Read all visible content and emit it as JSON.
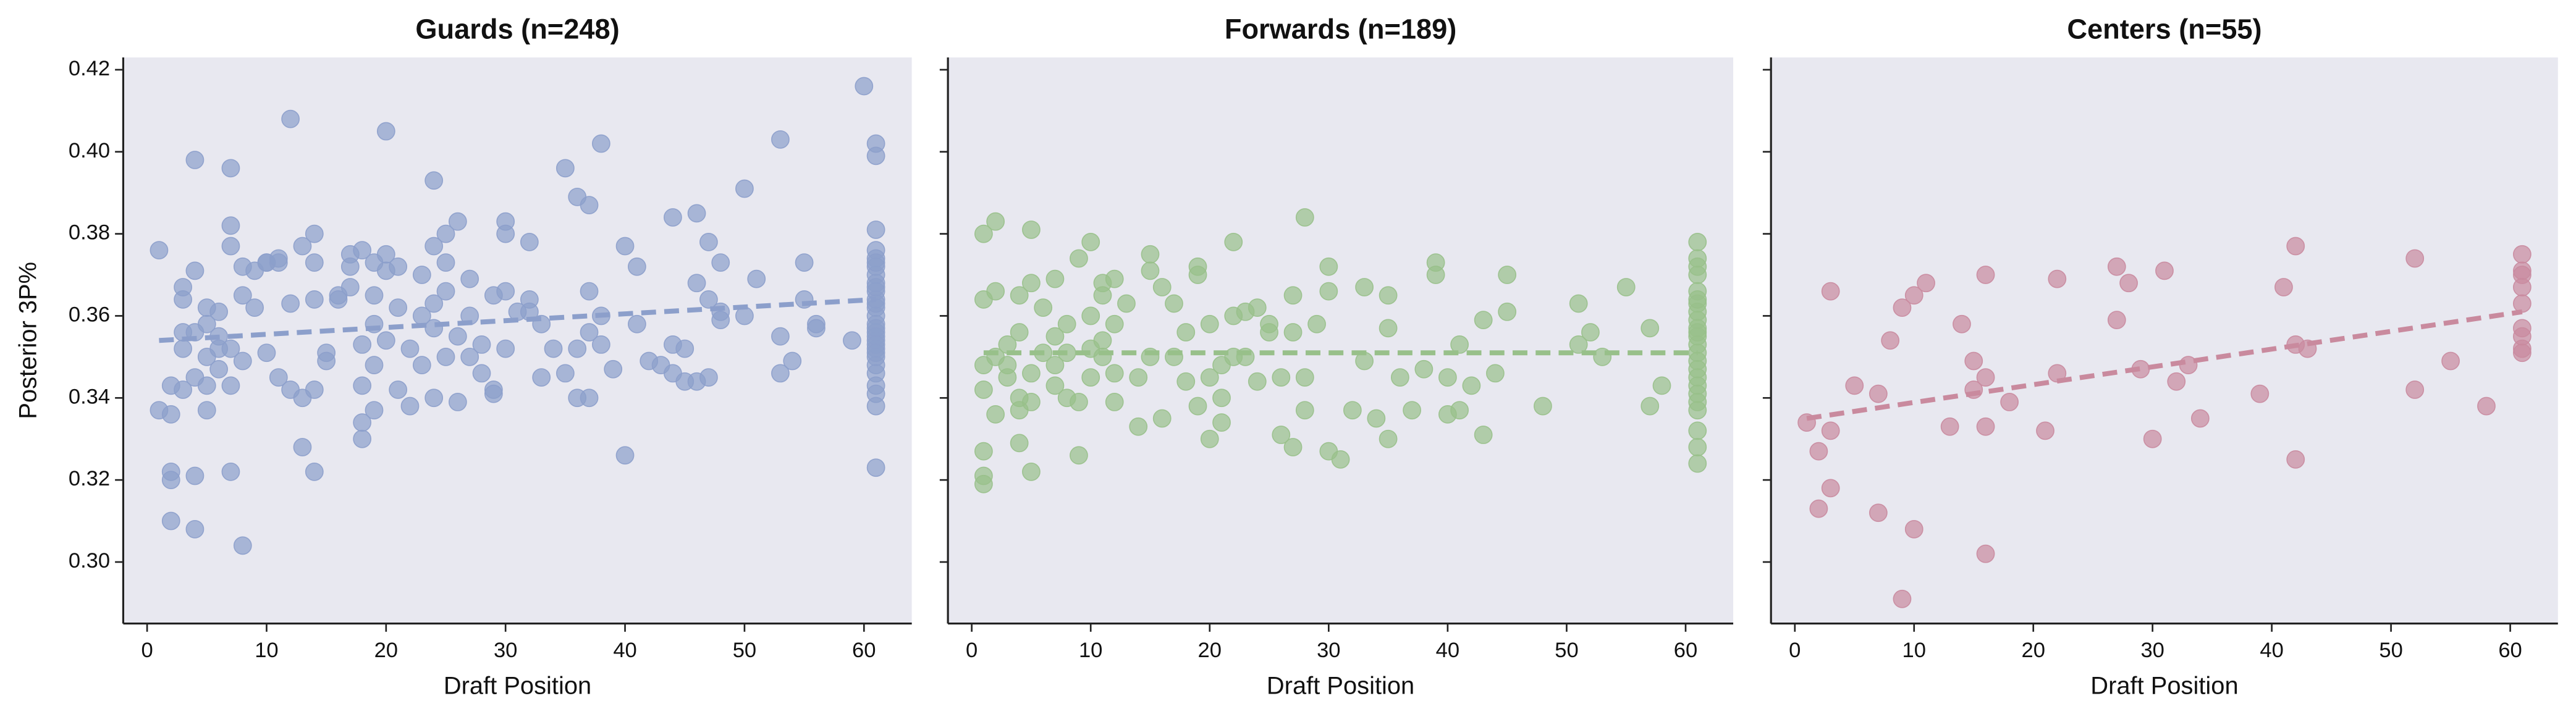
{
  "chart_data": [
    {
      "type": "scatter",
      "title": "Guards (n=248)",
      "xlabel": "Draft Position",
      "ylabel": "Posterior 3P%",
      "color": "#8c9fcb",
      "xlim": [
        -2,
        64
      ],
      "xticks": [
        0,
        10,
        20,
        30,
        40,
        50,
        60
      ],
      "ylim": [
        0.285,
        0.423
      ],
      "yticks": [
        {
          "value": 0.3,
          "label": "0.30"
        },
        0.32,
        0.34,
        0.36,
        0.38,
        {
          "value": 0.4,
          "label": "0.40"
        },
        0.42
      ],
      "x": [
        1,
        1,
        2,
        2,
        2,
        2,
        2,
        3,
        3,
        3,
        3,
        3,
        4,
        4,
        4,
        4,
        4,
        4,
        5,
        5,
        5,
        5,
        5,
        6,
        6,
        6,
        6,
        7,
        7,
        7,
        7,
        7,
        7,
        8,
        8,
        8,
        8,
        9,
        9,
        10,
        10,
        10,
        11,
        11,
        11,
        12,
        12,
        12,
        13,
        13,
        13,
        14,
        14,
        14,
        14,
        14,
        15,
        15,
        16,
        16,
        17,
        17,
        17,
        18,
        18,
        18,
        18,
        18,
        19,
        19,
        19,
        19,
        19,
        20,
        20,
        20,
        20,
        21,
        21,
        21,
        22,
        22,
        23,
        23,
        23,
        24,
        24,
        24,
        24,
        24,
        25,
        25,
        25,
        25,
        26,
        26,
        26,
        27,
        27,
        27,
        28,
        28,
        29,
        29,
        29,
        30,
        30,
        30,
        30,
        31,
        32,
        32,
        32,
        33,
        33,
        34,
        35,
        35,
        36,
        36,
        36,
        37,
        37,
        37,
        37,
        38,
        38,
        38,
        39,
        40,
        40,
        41,
        41,
        42,
        43,
        44,
        44,
        44,
        45,
        45,
        46,
        46,
        46,
        47,
        47,
        47,
        48,
        48,
        48,
        50,
        50,
        51,
        53,
        53,
        53,
        54,
        55,
        55,
        56,
        56,
        59,
        60,
        61,
        61,
        61,
        61,
        61,
        61,
        61,
        61,
        61,
        61,
        61,
        61,
        61,
        61,
        61,
        61,
        61,
        61,
        61,
        61,
        61,
        61,
        61,
        61,
        61,
        61,
        61,
        61,
        61,
        61
      ],
      "y": [
        0.376,
        0.337,
        0.322,
        0.32,
        0.31,
        0.343,
        0.336,
        0.356,
        0.364,
        0.367,
        0.342,
        0.352,
        0.398,
        0.371,
        0.356,
        0.321,
        0.308,
        0.345,
        0.362,
        0.358,
        0.35,
        0.337,
        0.343,
        0.355,
        0.347,
        0.361,
        0.352,
        0.396,
        0.382,
        0.377,
        0.352,
        0.322,
        0.343,
        0.372,
        0.365,
        0.304,
        0.349,
        0.362,
        0.371,
        0.373,
        0.351,
        0.373,
        0.374,
        0.345,
        0.373,
        0.408,
        0.342,
        0.363,
        0.377,
        0.34,
        0.328,
        0.38,
        0.373,
        0.364,
        0.342,
        0.322,
        0.351,
        0.349,
        0.365,
        0.364,
        0.375,
        0.367,
        0.372,
        0.376,
        0.353,
        0.343,
        0.334,
        0.33,
        0.373,
        0.365,
        0.358,
        0.348,
        0.337,
        0.405,
        0.375,
        0.371,
        0.354,
        0.372,
        0.362,
        0.342,
        0.352,
        0.338,
        0.37,
        0.36,
        0.348,
        0.393,
        0.377,
        0.363,
        0.357,
        0.34,
        0.38,
        0.373,
        0.366,
        0.35,
        0.383,
        0.355,
        0.339,
        0.369,
        0.36,
        0.35,
        0.353,
        0.346,
        0.365,
        0.342,
        0.341,
        0.383,
        0.38,
        0.366,
        0.352,
        0.361,
        0.378,
        0.364,
        0.361,
        0.358,
        0.345,
        0.352,
        0.396,
        0.346,
        0.389,
        0.352,
        0.34,
        0.387,
        0.366,
        0.356,
        0.34,
        0.402,
        0.36,
        0.353,
        0.347,
        0.377,
        0.326,
        0.372,
        0.358,
        0.349,
        0.348,
        0.384,
        0.353,
        0.346,
        0.352,
        0.344,
        0.385,
        0.368,
        0.344,
        0.378,
        0.364,
        0.345,
        0.373,
        0.361,
        0.359,
        0.391,
        0.36,
        0.369,
        0.403,
        0.355,
        0.346,
        0.349,
        0.373,
        0.364,
        0.358,
        0.357,
        0.354,
        0.416,
        0.402,
        0.399,
        0.381,
        0.376,
        0.374,
        0.372,
        0.37,
        0.368,
        0.366,
        0.364,
        0.362,
        0.36,
        0.358,
        0.356,
        0.354,
        0.352,
        0.35,
        0.348,
        0.346,
        0.343,
        0.341,
        0.338,
        0.323,
        0.373,
        0.367,
        0.363,
        0.357,
        0.355,
        0.353,
        0.351
      ],
      "trend_x": [
        1,
        61
      ],
      "trend_y": [
        0.354,
        0.364
      ]
    },
    {
      "type": "scatter",
      "title": "Forwards (n=189)",
      "xlabel": "Draft Position",
      "color": "#98c08a",
      "xlim": [
        -2,
        64
      ],
      "xticks": [
        0,
        10,
        20,
        30,
        40,
        50,
        60
      ],
      "x": [
        1,
        1,
        1,
        1,
        1,
        1,
        1,
        2,
        2,
        2,
        2,
        3,
        3,
        3,
        4,
        4,
        4,
        4,
        4,
        5,
        5,
        5,
        5,
        5,
        6,
        6,
        7,
        7,
        7,
        7,
        8,
        8,
        8,
        9,
        9,
        9,
        10,
        10,
        10,
        10,
        11,
        11,
        11,
        11,
        12,
        12,
        12,
        12,
        13,
        14,
        14,
        15,
        15,
        15,
        16,
        16,
        17,
        17,
        18,
        18,
        19,
        19,
        19,
        20,
        20,
        20,
        21,
        21,
        21,
        22,
        22,
        22,
        23,
        23,
        24,
        24,
        25,
        25,
        26,
        26,
        27,
        27,
        27,
        28,
        28,
        28,
        29,
        30,
        30,
        30,
        31,
        32,
        33,
        33,
        34,
        35,
        35,
        35,
        36,
        37,
        38,
        39,
        39,
        40,
        40,
        41,
        41,
        42,
        43,
        43,
        44,
        45,
        45,
        48,
        51,
        51,
        52,
        53,
        55,
        57,
        57,
        58,
        61,
        61,
        61,
        61,
        61,
        61,
        61,
        61,
        61,
        61,
        61,
        61,
        61,
        61,
        61,
        61,
        61,
        61,
        61,
        61,
        61,
        61,
        61,
        61
      ],
      "y": [
        0.38,
        0.364,
        0.348,
        0.342,
        0.327,
        0.321,
        0.319,
        0.383,
        0.366,
        0.35,
        0.336,
        0.353,
        0.348,
        0.345,
        0.365,
        0.356,
        0.34,
        0.329,
        0.337,
        0.381,
        0.368,
        0.346,
        0.339,
        0.322,
        0.362,
        0.351,
        0.369,
        0.355,
        0.348,
        0.343,
        0.358,
        0.351,
        0.34,
        0.374,
        0.339,
        0.326,
        0.378,
        0.36,
        0.352,
        0.345,
        0.368,
        0.365,
        0.354,
        0.35,
        0.369,
        0.358,
        0.346,
        0.339,
        0.363,
        0.333,
        0.345,
        0.375,
        0.371,
        0.35,
        0.335,
        0.367,
        0.363,
        0.35,
        0.344,
        0.356,
        0.372,
        0.37,
        0.338,
        0.358,
        0.345,
        0.33,
        0.348,
        0.34,
        0.334,
        0.378,
        0.36,
        0.35,
        0.361,
        0.35,
        0.362,
        0.344,
        0.358,
        0.356,
        0.331,
        0.345,
        0.365,
        0.356,
        0.328,
        0.384,
        0.337,
        0.345,
        0.358,
        0.372,
        0.366,
        0.327,
        0.325,
        0.337,
        0.367,
        0.349,
        0.335,
        0.365,
        0.357,
        0.33,
        0.345,
        0.337,
        0.347,
        0.373,
        0.37,
        0.345,
        0.336,
        0.353,
        0.337,
        0.343,
        0.359,
        0.331,
        0.346,
        0.37,
        0.361,
        0.338,
        0.363,
        0.353,
        0.356,
        0.35,
        0.367,
        0.357,
        0.338,
        0.343,
        0.378,
        0.374,
        0.372,
        0.366,
        0.363,
        0.361,
        0.359,
        0.357,
        0.355,
        0.353,
        0.351,
        0.349,
        0.347,
        0.345,
        0.343,
        0.341,
        0.339,
        0.337,
        0.332,
        0.328,
        0.324,
        0.37,
        0.364,
        0.356
      ],
      "trend_x": [
        1,
        61
      ],
      "trend_y": [
        0.351,
        0.351
      ]
    },
    {
      "type": "scatter",
      "title": "Centers (n=55)",
      "xlabel": "Draft Position",
      "color": "#c98a9e",
      "xlim": [
        -2,
        64
      ],
      "xticks": [
        0,
        10,
        20,
        30,
        40,
        50,
        60
      ],
      "x": [
        1,
        2,
        2,
        3,
        3,
        3,
        5,
        7,
        7,
        8,
        9,
        9,
        10,
        10,
        11,
        13,
        14,
        15,
        15,
        16,
        16,
        16,
        16,
        18,
        21,
        22,
        22,
        27,
        27,
        28,
        29,
        30,
        31,
        32,
        33,
        34,
        39,
        41,
        42,
        42,
        42,
        43,
        52,
        52,
        55,
        58,
        61,
        61,
        61,
        61,
        61,
        61,
        61,
        61,
        61
      ],
      "y": [
        0.334,
        0.327,
        0.313,
        0.366,
        0.332,
        0.318,
        0.343,
        0.341,
        0.312,
        0.354,
        0.362,
        0.291,
        0.365,
        0.308,
        0.368,
        0.333,
        0.358,
        0.349,
        0.342,
        0.37,
        0.345,
        0.333,
        0.302,
        0.339,
        0.332,
        0.369,
        0.346,
        0.372,
        0.359,
        0.368,
        0.347,
        0.33,
        0.371,
        0.344,
        0.348,
        0.335,
        0.341,
        0.367,
        0.377,
        0.353,
        0.325,
        0.352,
        0.374,
        0.342,
        0.349,
        0.338,
        0.375,
        0.371,
        0.37,
        0.367,
        0.363,
        0.357,
        0.355,
        0.352,
        0.351
      ],
      "trend_x": [
        1,
        61
      ],
      "trend_y": [
        0.335,
        0.361
      ]
    }
  ]
}
